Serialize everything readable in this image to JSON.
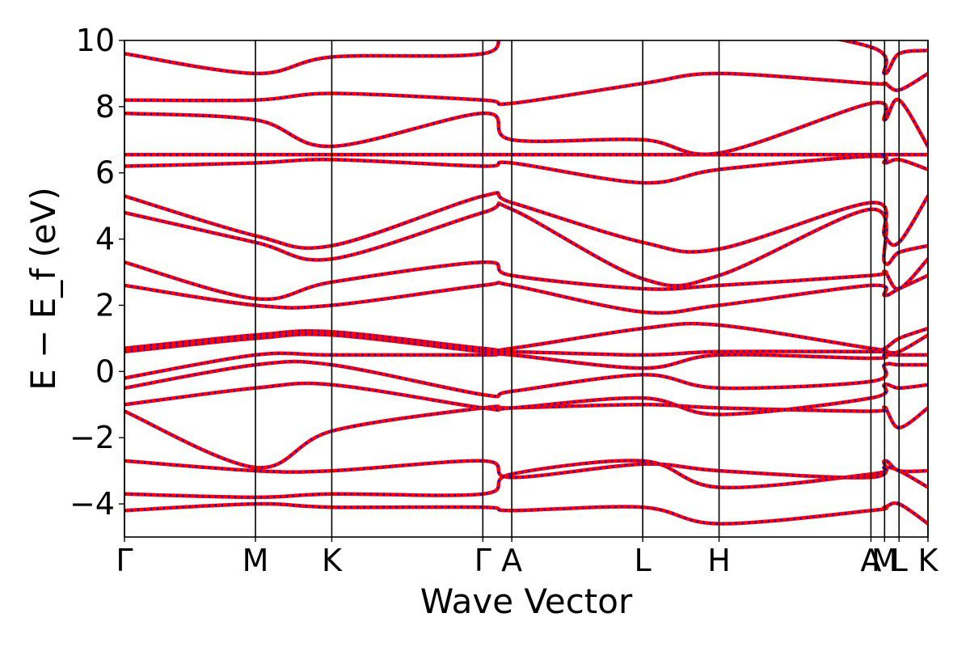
{
  "chart_data": {
    "type": "line",
    "xlabel": "Wave Vector",
    "ylabel": "E − E_f (eV)",
    "ylim": [
      -5,
      10
    ],
    "yticks": [
      -4,
      -2,
      0,
      2,
      4,
      6,
      8,
      10
    ],
    "high_symmetry_points": [
      {
        "label": "Γ",
        "position": 0.0
      },
      {
        "label": "M",
        "position": 0.163
      },
      {
        "label": "K",
        "position": 0.258
      },
      {
        "label": "Γ",
        "position": 0.446
      },
      {
        "label": "A",
        "position": 0.482
      },
      {
        "label": "L",
        "position": 0.645
      },
      {
        "label": "H",
        "position": 0.74
      },
      {
        "label": "A",
        "position": 0.929
      },
      {
        "label": "M",
        "position": 0.946
      },
      {
        "label": "L",
        "position": 0.964
      },
      {
        "label": "K",
        "position": 1.0
      }
    ],
    "legend": "none",
    "grid": false,
    "series": [
      {
        "style": "solid",
        "color": "#ff0000"
      },
      {
        "style": "dotted",
        "color": "#0000ff"
      }
    ],
    "bands": [
      {
        "x": [
          0.0,
          0.163,
          0.258,
          0.446,
          0.482,
          0.645,
          0.74,
          0.929,
          0.946,
          0.964,
          1.0
        ],
        "y": [
          -4.2,
          -4.0,
          -4.1,
          -4.1,
          -4.2,
          -4.1,
          -4.6,
          -4.2,
          -4.1,
          -4.0,
          -4.6
        ]
      },
      {
        "x": [
          0.0,
          0.163,
          0.258,
          0.446,
          0.482,
          0.645,
          0.74,
          0.929,
          0.946,
          0.964,
          1.0
        ],
        "y": [
          -3.7,
          -3.8,
          -3.7,
          -3.7,
          -3.1,
          -2.7,
          -3.5,
          -3.1,
          -2.9,
          -3.0,
          -3.5
        ]
      },
      {
        "x": [
          0.0,
          0.163,
          0.258,
          0.446,
          0.482,
          0.645,
          0.74,
          0.929,
          0.946,
          0.964,
          1.0
        ],
        "y": [
          -2.7,
          -3.0,
          -3.0,
          -2.7,
          -3.2,
          -2.8,
          -3.0,
          -3.2,
          -2.7,
          -3.0,
          -3.0
        ]
      },
      {
        "x": [
          0.0,
          0.163,
          0.258,
          0.446,
          0.482,
          0.645,
          0.74,
          0.929,
          0.946,
          0.964,
          1.0
        ],
        "y": [
          -1.2,
          -2.9,
          -1.8,
          -1.1,
          -1.1,
          -1.0,
          -1.1,
          -1.2,
          -1.1,
          -1.7,
          -1.1
        ]
      },
      {
        "x": [
          0.0,
          0.163,
          0.258,
          0.446,
          0.482,
          0.645,
          0.74,
          0.929,
          0.946,
          0.964,
          1.0
        ],
        "y": [
          -1.0,
          -0.5,
          -0.4,
          -1.1,
          -1.1,
          -0.8,
          -1.3,
          -0.8,
          -0.4,
          -0.5,
          -0.4
        ]
      },
      {
        "x": [
          0.0,
          0.163,
          0.258,
          0.446,
          0.482,
          0.645,
          0.74,
          0.929,
          0.946,
          0.964,
          1.0
        ],
        "y": [
          -0.5,
          0.2,
          0.2,
          -0.7,
          -0.6,
          -0.1,
          -0.5,
          -0.3,
          0.2,
          0.2,
          0.2
        ]
      },
      {
        "x": [
          0.0,
          0.163,
          0.258,
          0.446,
          0.482,
          0.645,
          0.74,
          0.929,
          0.946,
          0.964,
          1.0
        ],
        "y": [
          -0.2,
          0.5,
          0.5,
          0.5,
          0.5,
          0.1,
          0.5,
          0.4,
          0.5,
          0.5,
          0.5
        ]
      },
      {
        "x": [
          0.0,
          0.163,
          0.258,
          0.446,
          0.482,
          0.645,
          0.74,
          0.929,
          0.946,
          0.964,
          1.0
        ],
        "y": [
          0.6,
          1.0,
          1.1,
          0.6,
          0.6,
          0.5,
          0.6,
          0.6,
          0.6,
          0.6,
          1.1
        ]
      },
      {
        "x": [
          0.0,
          0.163,
          0.258,
          0.446,
          0.482,
          0.645,
          0.74,
          0.929,
          0.946,
          0.964,
          1.0
        ],
        "y": [
          0.7,
          1.1,
          1.2,
          0.7,
          0.7,
          1.3,
          1.4,
          0.7,
          0.7,
          1.0,
          1.3
        ]
      },
      {
        "x": [
          0.0,
          0.163,
          0.258,
          0.446,
          0.482,
          0.645,
          0.74,
          0.929,
          0.946,
          0.964,
          1.0
        ],
        "y": [
          2.6,
          2.0,
          2.0,
          2.6,
          2.6,
          1.8,
          2.0,
          2.6,
          2.3,
          2.5,
          2.9
        ]
      },
      {
        "x": [
          0.0,
          0.163,
          0.258,
          0.446,
          0.482,
          0.645,
          0.74,
          0.929,
          0.946,
          0.964,
          1.0
        ],
        "y": [
          3.3,
          2.2,
          2.7,
          3.3,
          2.9,
          2.5,
          2.6,
          2.9,
          3.0,
          2.5,
          3.4
        ]
      },
      {
        "x": [
          0.0,
          0.163,
          0.258,
          0.446,
          0.482,
          0.645,
          0.74,
          0.929,
          0.946,
          0.964,
          1.0
        ],
        "y": [
          4.8,
          3.9,
          3.4,
          4.8,
          4.9,
          2.8,
          2.9,
          4.9,
          3.3,
          3.6,
          3.8
        ]
      },
      {
        "x": [
          0.0,
          0.163,
          0.258,
          0.446,
          0.482,
          0.645,
          0.74,
          0.929,
          0.946,
          0.964,
          1.0
        ],
        "y": [
          5.3,
          4.1,
          3.8,
          5.3,
          5.1,
          3.9,
          3.7,
          5.1,
          4.1,
          3.9,
          5.3
        ]
      },
      {
        "x": [
          0.0,
          0.163,
          0.258,
          0.446,
          0.482,
          0.645,
          0.74,
          0.929,
          0.946,
          0.964,
          1.0
        ],
        "y": [
          6.2,
          6.3,
          6.4,
          6.2,
          6.3,
          5.7,
          6.1,
          6.5,
          6.3,
          6.4,
          6.1
        ]
      },
      {
        "x": [
          0.0,
          0.163,
          0.258,
          0.446,
          0.482,
          0.645,
          0.74,
          0.929,
          0.946,
          0.964,
          1.0
        ],
        "y": [
          6.55,
          6.55,
          6.55,
          6.55,
          6.55,
          6.55,
          6.55,
          6.55,
          6.55,
          6.55,
          6.55
        ]
      },
      {
        "x": [
          0.0,
          0.163,
          0.258,
          0.446,
          0.482,
          0.645,
          0.74,
          0.929,
          0.946,
          0.964,
          1.0
        ],
        "y": [
          7.8,
          7.6,
          6.8,
          7.8,
          7.0,
          7.0,
          6.6,
          8.1,
          7.6,
          8.2,
          6.8
        ]
      },
      {
        "x": [
          0.0,
          0.163,
          0.258,
          0.446,
          0.482,
          0.645,
          0.74,
          0.929,
          0.946,
          0.964,
          1.0
        ],
        "y": [
          8.2,
          8.2,
          8.4,
          8.2,
          8.1,
          8.7,
          9.0,
          8.7,
          8.7,
          8.5,
          9.0
        ]
      },
      {
        "x": [
          0.0,
          0.163,
          0.258,
          0.446,
          0.482,
          0.645,
          0.74,
          0.929,
          0.946,
          0.964,
          1.0
        ],
        "y": [
          9.6,
          9.0,
          9.5,
          9.6,
          10.4,
          10.5,
          10.6,
          9.8,
          9.0,
          9.6,
          9.7
        ]
      }
    ]
  }
}
